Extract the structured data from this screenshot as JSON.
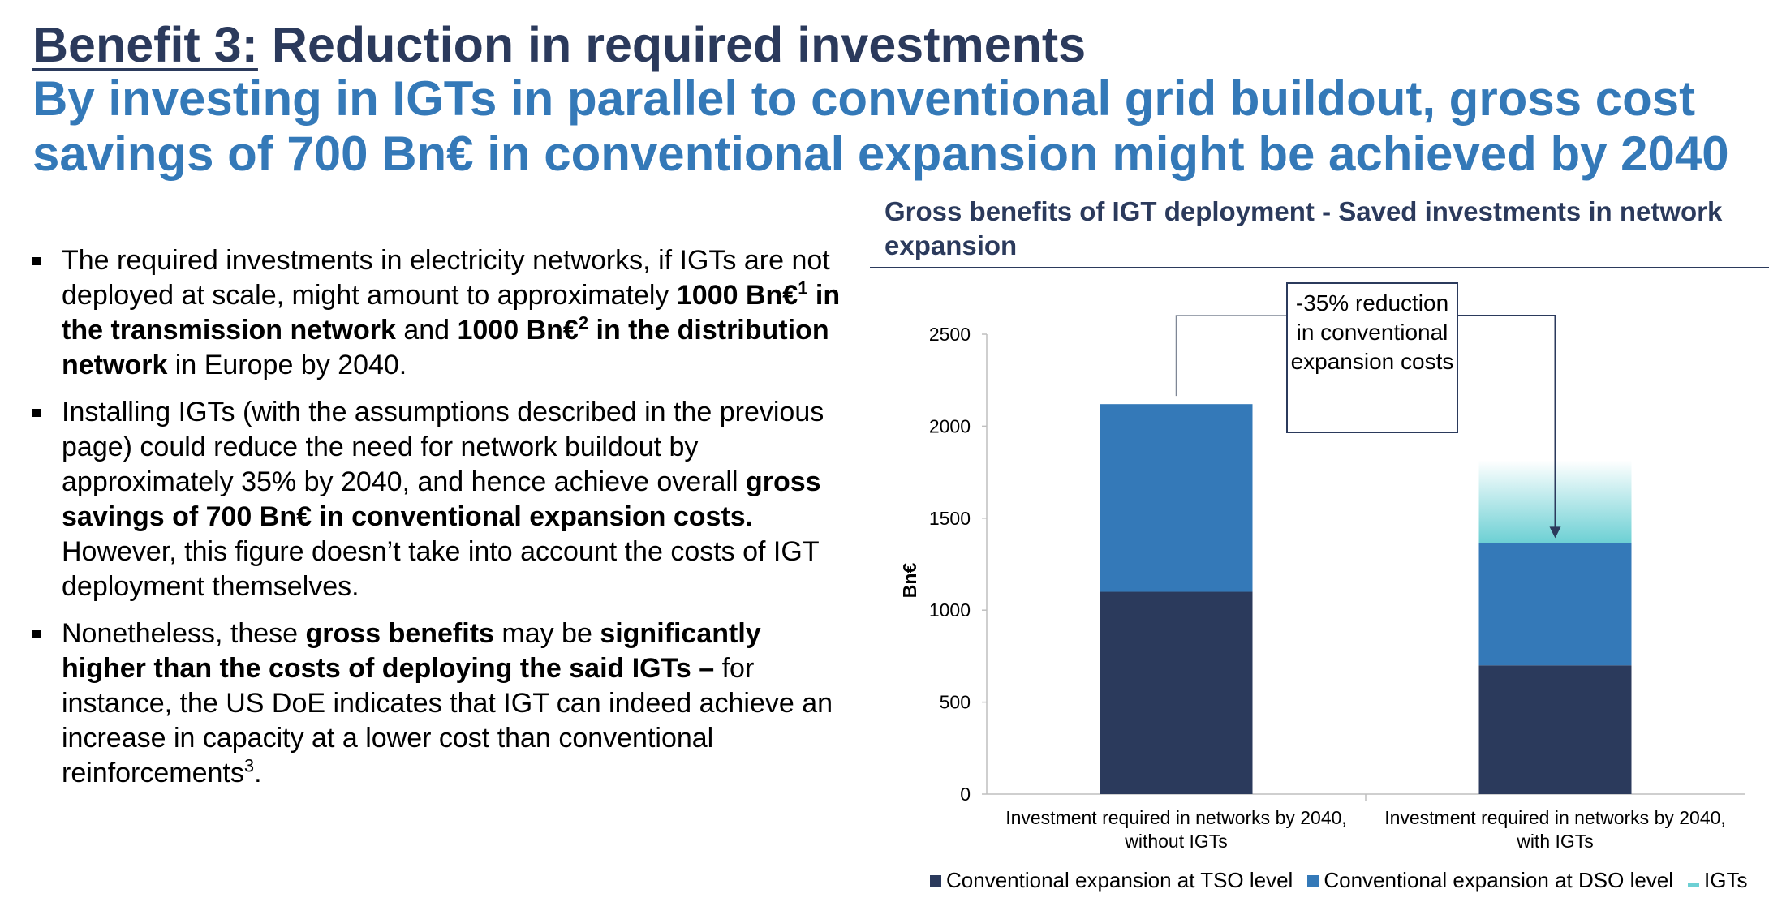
{
  "header": {
    "title_lead": "Benefit 3:",
    "title_rest": " Reduction in required investments",
    "subtitle": "By investing in IGTs in parallel to conventional grid buildout, gross cost savings of 700 Bn€ in conventional expansion might be achieved by 2040"
  },
  "bullets": [
    {
      "parts": [
        {
          "t": "The required investments in electricity networks, if IGTs are not deployed at scale, might amount to approximately ",
          "b": false
        },
        {
          "t": "1000 Bn€",
          "b": true
        },
        {
          "t": "1",
          "b": true,
          "sup": true
        },
        {
          "t": " in the transmission network",
          "b": true
        },
        {
          "t": " and ",
          "b": false
        },
        {
          "t": "1000 Bn€",
          "b": true
        },
        {
          "t": "2",
          "b": true,
          "sup": true
        },
        {
          "t": " in the distribution network",
          "b": true
        },
        {
          "t": " in Europe by 2040.",
          "b": false
        }
      ]
    },
    {
      "parts": [
        {
          "t": "Installing IGTs (with the assumptions described in the previous page) could reduce the need for network buildout by approximately 35% by 2040, and hence achieve overall ",
          "b": false
        },
        {
          "t": "gross savings of 700 Bn€ in conventional expansion costs.",
          "b": true
        },
        {
          "t": " However, this figure doesn’t take into account the costs of IGT deployment themselves.",
          "b": false
        }
      ]
    },
    {
      "parts": [
        {
          "t": "Nonetheless, these ",
          "b": false
        },
        {
          "t": "gross benefits",
          "b": true
        },
        {
          "t": " may be ",
          "b": false
        },
        {
          "t": "significantly higher than the costs of deploying the said IGTs –",
          "b": true
        },
        {
          "t": " for instance, the US DoE indicates that IGT can indeed achieve an increase in capacity at a lower cost than conventional reinforcements",
          "b": false
        },
        {
          "t": "3",
          "b": false,
          "sup": true
        },
        {
          "t": ".",
          "b": false
        }
      ]
    }
  ],
  "callout_text": "-35% reduction in conventional expansion costs",
  "chart_data": {
    "type": "bar",
    "stacked": true,
    "title": "Gross benefits of IGT deployment - Saved investments in network expansion",
    "ylabel": "Bn€",
    "ylim": [
      0,
      2500
    ],
    "yticks": [
      0,
      500,
      1000,
      1500,
      2000,
      2500
    ],
    "categories": [
      [
        "Investment required in networks by 2040,",
        "without IGTs"
      ],
      [
        "Investment required in networks by 2040,",
        "with IGTs"
      ]
    ],
    "series": [
      {
        "name": "Conventional expansion at TSO level",
        "values": [
          1100,
          700
        ],
        "color": "#2b3a5c"
      },
      {
        "name": "Conventional expansion at DSO level",
        "values": [
          1020,
          665
        ],
        "color": "#3479b8"
      },
      {
        "name": "IGTs",
        "values": [
          0,
          450
        ],
        "color": "#6dd0d4"
      }
    ],
    "legend_position": "bottom"
  }
}
